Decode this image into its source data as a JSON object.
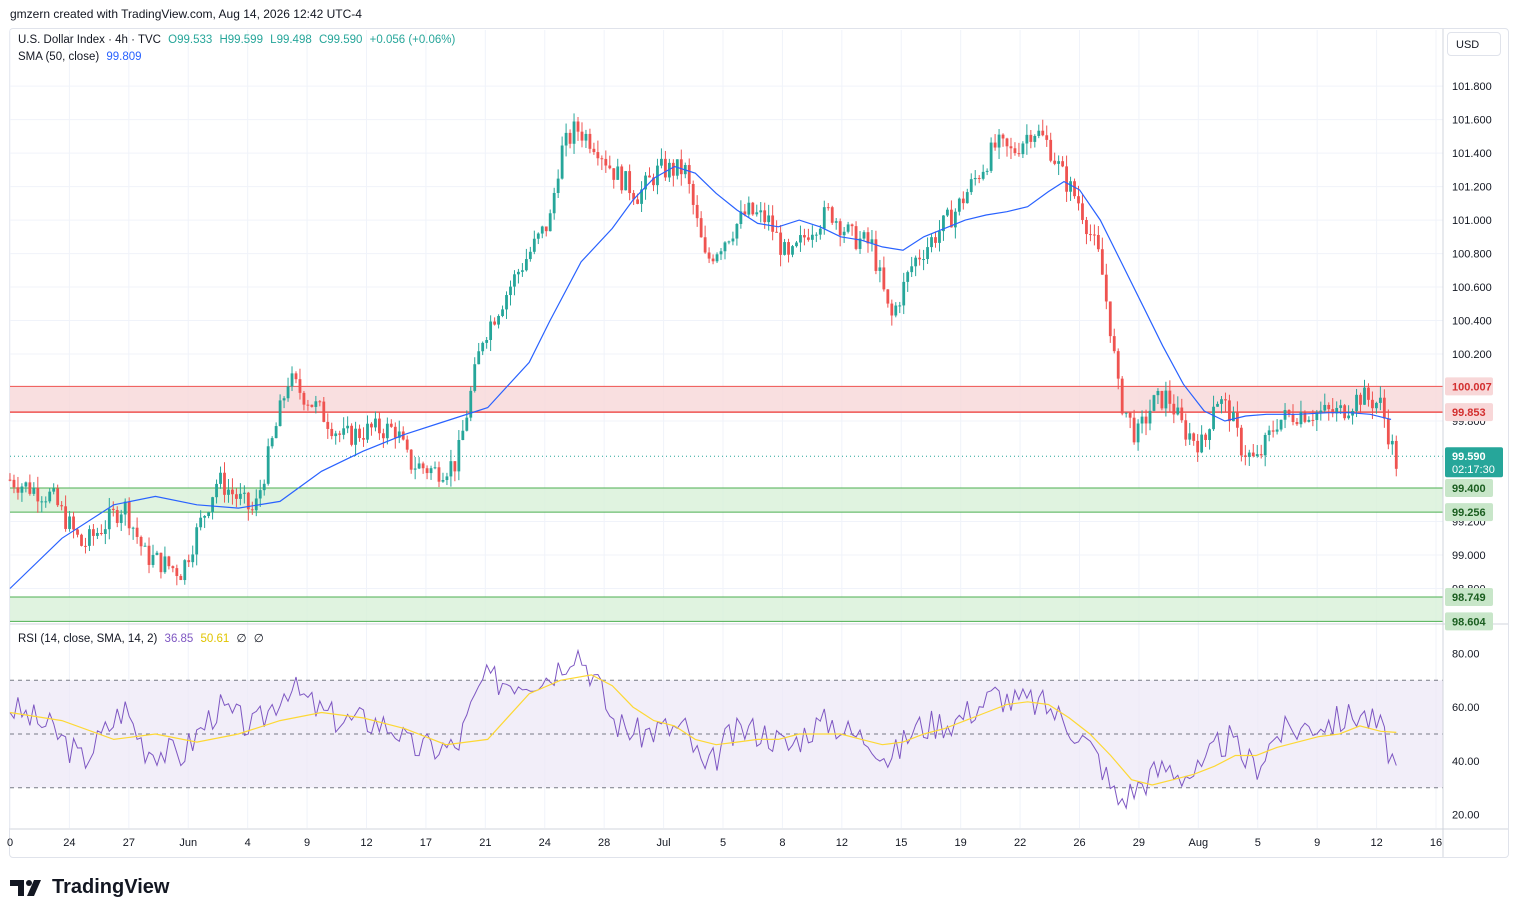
{
  "header": {
    "attribution": "gmzern created with TradingView.com, Aug 14, 2026 12:42 UTC-4"
  },
  "legend": {
    "symbol": "U.S. Dollar Index · 4h · TVC",
    "open": "O99.533",
    "high": "H99.599",
    "low": "L99.498",
    "close": "C99.590",
    "change": "+0.056 (+0.06%)",
    "sma_label": "SMA (50, close)",
    "sma_value": "99.809",
    "rsi_label": "RSI (14, close, SMA, 14, 2)",
    "rsi_value": "36.85",
    "rsi_sma_value": "50.61",
    "rsi_extra1": "∅",
    "rsi_extra2": "∅"
  },
  "currency_button": "USD",
  "brand": {
    "name": "TradingView"
  },
  "colors": {
    "up": "#26a69a",
    "down": "#ef5350",
    "sma": "#2962ff",
    "rsi": "#7e57c2",
    "rsi_sma": "#fdd835",
    "resistance_zone": "#f8d7d8",
    "support_zone": "#d8f0d8",
    "last_price": "#26a69a"
  },
  "chart_data": {
    "type": "candlestick",
    "title": "U.S. Dollar Index · 4h · TVC",
    "timeframe": "4h",
    "price_axis": {
      "range": [
        98.6,
        101.92
      ],
      "ticks": [
        "101.800",
        "101.600",
        "101.400",
        "101.200",
        "101.000",
        "100.800",
        "100.600",
        "100.400",
        "100.200",
        "99.800",
        "99.200",
        "99.000",
        "98.800"
      ]
    },
    "x_axis": {
      "labels": [
        "0",
        "24",
        "27",
        "Jun",
        "4",
        "9",
        "12",
        "17",
        "21",
        "24",
        "28",
        "Jul",
        "5",
        "8",
        "12",
        "15",
        "19",
        "22",
        "26",
        "29",
        "Aug",
        "5",
        "9",
        "12",
        "16"
      ]
    },
    "price_path": [
      [
        0,
        99.45
      ],
      [
        0.04,
        99.35
      ],
      [
        0.07,
        99.05
      ],
      [
        0.11,
        99.3
      ],
      [
        0.13,
        99.0
      ],
      [
        0.165,
        98.9
      ],
      [
        0.2,
        99.45
      ],
      [
        0.235,
        99.25
      ],
      [
        0.268,
        100.05
      ],
      [
        0.3,
        99.85
      ],
      [
        0.32,
        99.7
      ],
      [
        0.348,
        99.75
      ],
      [
        0.372,
        99.75
      ],
      [
        0.384,
        99.55
      ],
      [
        0.41,
        99.5
      ],
      [
        0.43,
        99.55
      ],
      [
        0.455,
        100.3
      ],
      [
        0.49,
        100.7
      ],
      [
        0.52,
        101.0
      ],
      [
        0.53,
        101.4
      ],
      [
        0.545,
        101.55
      ],
      [
        0.565,
        101.45
      ],
      [
        0.58,
        101.3
      ],
      [
        0.605,
        101.15
      ],
      [
        0.625,
        101.3
      ],
      [
        0.65,
        101.3
      ],
      [
        0.67,
        100.75
      ],
      [
        0.69,
        100.9
      ],
      [
        0.71,
        101.05
      ],
      [
        0.73,
        101.0
      ],
      [
        0.75,
        100.75
      ],
      [
        0.77,
        100.95
      ],
      [
        0.79,
        101.05
      ],
      [
        0.81,
        100.9
      ],
      [
        0.83,
        100.85
      ],
      [
        0.848,
        100.4
      ],
      [
        0.87,
        100.75
      ],
      [
        0.89,
        100.9
      ],
      [
        0.91,
        101.05
      ],
      [
        0.93,
        101.25
      ],
      [
        0.95,
        101.45
      ],
      [
        0.965,
        101.4
      ],
      [
        0.985,
        101.55
      ],
      [
        1.0,
        101.45
      ],
      [
        1.015,
        101.25
      ],
      [
        1.03,
        101.1
      ],
      [
        1.05,
        100.75
      ],
      [
        1.06,
        100.35
      ],
      [
        1.068,
        99.95
      ],
      [
        1.085,
        99.7
      ],
      [
        1.1,
        99.9
      ],
      [
        1.115,
        99.95
      ],
      [
        1.13,
        99.75
      ],
      [
        1.15,
        99.65
      ],
      [
        1.16,
        99.95
      ],
      [
        1.175,
        99.85
      ],
      [
        1.185,
        99.65
      ],
      [
        1.2,
        99.55
      ],
      [
        1.22,
        99.8
      ],
      [
        1.24,
        99.85
      ],
      [
        1.26,
        99.85
      ],
      [
        1.28,
        99.85
      ],
      [
        1.3,
        99.95
      ],
      [
        1.32,
        99.9
      ],
      [
        1.335,
        99.55
      ]
    ],
    "sma_path": [
      [
        0,
        98.8
      ],
      [
        0.05,
        99.1
      ],
      [
        0.1,
        99.3
      ],
      [
        0.14,
        99.35
      ],
      [
        0.18,
        99.3
      ],
      [
        0.22,
        99.28
      ],
      [
        0.26,
        99.32
      ],
      [
        0.3,
        99.5
      ],
      [
        0.34,
        99.62
      ],
      [
        0.38,
        99.72
      ],
      [
        0.42,
        99.8
      ],
      [
        0.46,
        99.88
      ],
      [
        0.5,
        100.15
      ],
      [
        0.52,
        100.4
      ],
      [
        0.55,
        100.75
      ],
      [
        0.58,
        100.95
      ],
      [
        0.6,
        101.12
      ],
      [
        0.62,
        101.25
      ],
      [
        0.64,
        101.32
      ],
      [
        0.66,
        101.28
      ],
      [
        0.68,
        101.16
      ],
      [
        0.7,
        101.06
      ],
      [
        0.72,
        100.98
      ],
      [
        0.74,
        100.96
      ],
      [
        0.76,
        101.0
      ],
      [
        0.78,
        100.96
      ],
      [
        0.8,
        100.9
      ],
      [
        0.82,
        100.88
      ],
      [
        0.84,
        100.84
      ],
      [
        0.86,
        100.82
      ],
      [
        0.88,
        100.9
      ],
      [
        0.9,
        100.95
      ],
      [
        0.92,
        101.0
      ],
      [
        0.94,
        101.03
      ],
      [
        0.96,
        101.05
      ],
      [
        0.98,
        101.08
      ],
      [
        1.0,
        101.17
      ],
      [
        1.015,
        101.23
      ],
      [
        1.03,
        101.18
      ],
      [
        1.05,
        101.0
      ],
      [
        1.07,
        100.75
      ],
      [
        1.09,
        100.5
      ],
      [
        1.11,
        100.25
      ],
      [
        1.13,
        100.02
      ],
      [
        1.15,
        99.86
      ],
      [
        1.17,
        99.8
      ],
      [
        1.19,
        99.83
      ],
      [
        1.21,
        99.84
      ],
      [
        1.24,
        99.84
      ],
      [
        1.27,
        99.85
      ],
      [
        1.29,
        99.85
      ],
      [
        1.31,
        99.84
      ],
      [
        1.33,
        99.81
      ]
    ],
    "zones": [
      {
        "type": "resistance",
        "from": 99.853,
        "to": 100.007,
        "labels": [
          "100.007",
          "99.853"
        ]
      },
      {
        "type": "support",
        "from": 99.256,
        "to": 99.4,
        "labels": [
          "99.400",
          "99.256"
        ]
      },
      {
        "type": "support",
        "from": 98.604,
        "to": 98.749,
        "labels": [
          "98.749",
          "98.604"
        ]
      }
    ],
    "last_price": {
      "value": 99.59,
      "label": "99.590",
      "countdown": "02:17:30"
    },
    "rsi": {
      "range": [
        15,
        85
      ],
      "ticks": [
        "80.00",
        "60.00",
        "40.00",
        "20.00"
      ],
      "bands": [
        30,
        50,
        70
      ],
      "path": [
        [
          0,
          60
        ],
        [
          0.04,
          52
        ],
        [
          0.07,
          40
        ],
        [
          0.11,
          60
        ],
        [
          0.13,
          45
        ],
        [
          0.165,
          42
        ],
        [
          0.2,
          60
        ],
        [
          0.235,
          52
        ],
        [
          0.268,
          68
        ],
        [
          0.3,
          58
        ],
        [
          0.32,
          55
        ],
        [
          0.348,
          55
        ],
        [
          0.372,
          52
        ],
        [
          0.384,
          45
        ],
        [
          0.41,
          45
        ],
        [
          0.43,
          45
        ],
        [
          0.455,
          70
        ],
        [
          0.49,
          70
        ],
        [
          0.52,
          72
        ],
        [
          0.53,
          76
        ],
        [
          0.545,
          82
        ],
        [
          0.565,
          70
        ],
        [
          0.58,
          55
        ],
        [
          0.605,
          50
        ],
        [
          0.625,
          52
        ],
        [
          0.65,
          52
        ],
        [
          0.67,
          35
        ],
        [
          0.69,
          48
        ],
        [
          0.71,
          52
        ],
        [
          0.73,
          50
        ],
        [
          0.75,
          45
        ],
        [
          0.77,
          52
        ],
        [
          0.79,
          55
        ],
        [
          0.81,
          50
        ],
        [
          0.83,
          48
        ],
        [
          0.848,
          40
        ],
        [
          0.87,
          52
        ],
        [
          0.89,
          54
        ],
        [
          0.91,
          55
        ],
        [
          0.93,
          60
        ],
        [
          0.95,
          65
        ],
        [
          0.965,
          62
        ],
        [
          0.985,
          62
        ],
        [
          1.0,
          60
        ],
        [
          1.015,
          55
        ],
        [
          1.03,
          50
        ],
        [
          1.05,
          40
        ],
        [
          1.06,
          30
        ],
        [
          1.068,
          25
        ],
        [
          1.085,
          30
        ],
        [
          1.1,
          35
        ],
        [
          1.115,
          38
        ],
        [
          1.13,
          35
        ],
        [
          1.15,
          36
        ],
        [
          1.16,
          45
        ],
        [
          1.175,
          48
        ],
        [
          1.185,
          42
        ],
        [
          1.2,
          38
        ],
        [
          1.22,
          50
        ],
        [
          1.24,
          52
        ],
        [
          1.26,
          54
        ],
        [
          1.28,
          55
        ],
        [
          1.3,
          58
        ],
        [
          1.32,
          52
        ],
        [
          1.335,
          37
        ]
      ],
      "sma_path": [
        [
          0,
          58
        ],
        [
          0.05,
          55
        ],
        [
          0.1,
          48
        ],
        [
          0.14,
          50
        ],
        [
          0.18,
          47
        ],
        [
          0.22,
          50
        ],
        [
          0.26,
          55
        ],
        [
          0.3,
          58
        ],
        [
          0.34,
          56
        ],
        [
          0.38,
          52
        ],
        [
          0.42,
          46
        ],
        [
          0.46,
          48
        ],
        [
          0.5,
          65
        ],
        [
          0.53,
          70
        ],
        [
          0.56,
          72
        ],
        [
          0.58,
          68
        ],
        [
          0.6,
          60
        ],
        [
          0.62,
          55
        ],
        [
          0.64,
          53
        ],
        [
          0.66,
          48
        ],
        [
          0.68,
          46
        ],
        [
          0.7,
          47
        ],
        [
          0.72,
          48
        ],
        [
          0.74,
          48
        ],
        [
          0.76,
          50
        ],
        [
          0.78,
          50
        ],
        [
          0.8,
          50
        ],
        [
          0.82,
          48
        ],
        [
          0.84,
          46
        ],
        [
          0.86,
          47
        ],
        [
          0.88,
          50
        ],
        [
          0.9,
          52
        ],
        [
          0.92,
          55
        ],
        [
          0.94,
          58
        ],
        [
          0.96,
          61
        ],
        [
          0.98,
          62
        ],
        [
          1.0,
          61
        ],
        [
          1.02,
          56
        ],
        [
          1.04,
          50
        ],
        [
          1.06,
          42
        ],
        [
          1.08,
          33
        ],
        [
          1.1,
          31
        ],
        [
          1.12,
          33
        ],
        [
          1.14,
          35
        ],
        [
          1.16,
          38
        ],
        [
          1.18,
          42
        ],
        [
          1.2,
          42
        ],
        [
          1.22,
          45
        ],
        [
          1.24,
          47
        ],
        [
          1.26,
          49
        ],
        [
          1.28,
          50
        ],
        [
          1.3,
          53
        ],
        [
          1.32,
          51
        ],
        [
          1.335,
          50.61
        ]
      ]
    }
  }
}
